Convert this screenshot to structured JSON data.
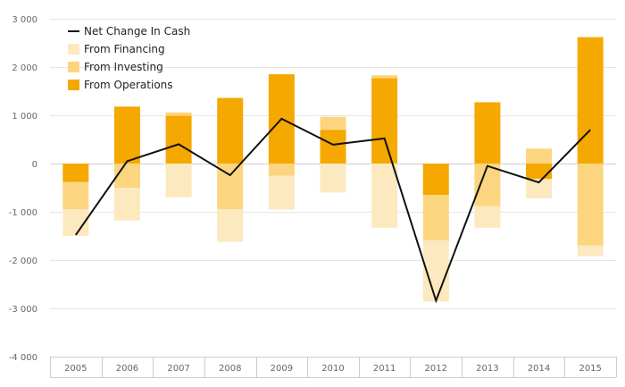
{
  "chart_data": {
    "type": "bar",
    "stacked": true,
    "categories": [
      "2005",
      "2006",
      "2007",
      "2008",
      "2009",
      "2010",
      "2011",
      "2012",
      "2013",
      "2014",
      "2015"
    ],
    "series": [
      {
        "name": "From Operations",
        "kind": "bar",
        "color": "#f5a800",
        "values": [
          -380,
          1180,
          990,
          1360,
          1850,
          700,
          1770,
          -650,
          1270,
          -320,
          2620
        ]
      },
      {
        "name": "From Investing",
        "kind": "bar",
        "color": "#fcd580",
        "values": [
          -570,
          -500,
          70,
          -950,
          -250,
          270,
          60,
          -940,
          -880,
          310,
          -1700
        ]
      },
      {
        "name": "From Financing",
        "kind": "bar",
        "color": "#fde9bf",
        "values": [
          -550,
          -680,
          -700,
          -670,
          -700,
          -600,
          -1330,
          -1270,
          -450,
          -400,
          -220
        ]
      },
      {
        "name": "Net Change In Cash",
        "kind": "line",
        "color": "#111111",
        "values": [
          -1480,
          50,
          400,
          -240,
          930,
          390,
          520,
          -2840,
          -50,
          -390,
          700
        ]
      }
    ],
    "legend": {
      "placement": "top-left",
      "entries": [
        "Net Change In Cash",
        "From Financing",
        "From Investing",
        "From Operations"
      ]
    },
    "y_ticks": [
      "3 000",
      "2 000",
      "1 000",
      "0",
      "-1 000",
      "-2 000",
      "-3 000",
      "-4 000"
    ],
    "y_tick_values": [
      3000,
      2000,
      1000,
      0,
      -1000,
      -2000,
      -3000,
      -4000
    ],
    "ylim": [
      -4000,
      3000
    ],
    "grid": true,
    "title": "",
    "xlabel": "",
    "ylabel": ""
  }
}
